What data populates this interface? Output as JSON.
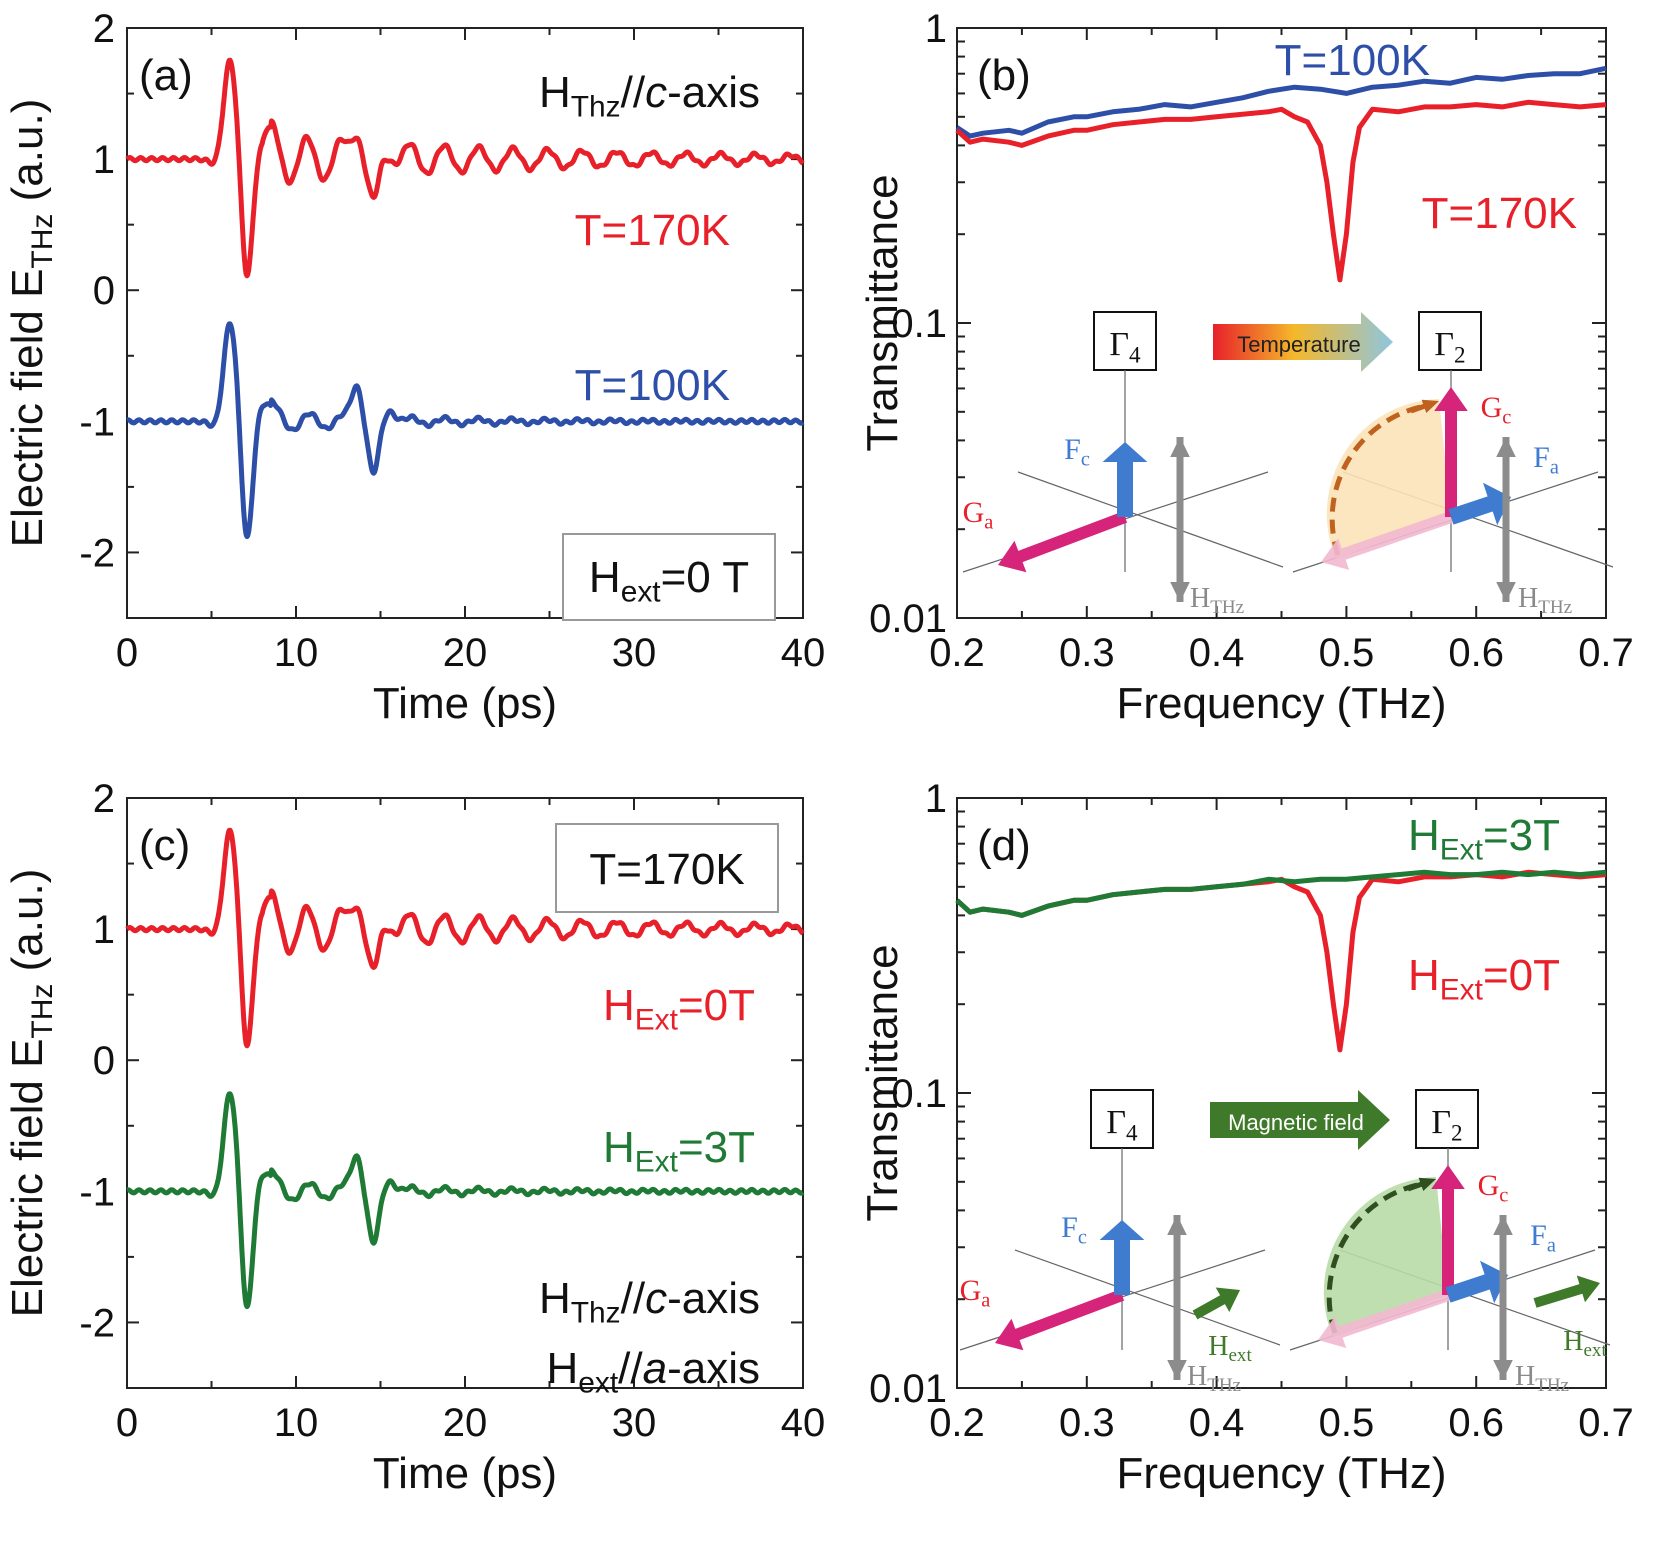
{
  "colors": {
    "red": "#e8202a",
    "blue": "#2e4fa8",
    "green": "#1f7a35",
    "axis": "#222222",
    "gray_label": "#8a8a8a",
    "magenta": "#d6247a",
    "arrow_blue": "#3f7cd0",
    "arrow_gray": "#8c8c8c",
    "fill_orange": "#fbe3b8",
    "dash_orange": "#c0621f",
    "fill_green": "#b9dba8",
    "dash_green": "#2f4f20",
    "magnet_green": "#3f7a2a"
  },
  "chart_data": [
    {
      "panel": "(a)",
      "type": "line",
      "xlabel": "Time (ps)",
      "ylabel": "Electric field E",
      "ylabel_sub": "THz",
      "ylabel_unit": " (a.u.)",
      "xlim": [
        0,
        40
      ],
      "ylim": [
        -2.5,
        2
      ],
      "xticks": [
        "0",
        "10",
        "20",
        "30",
        "40"
      ],
      "yticks": [
        "2",
        "1",
        "0",
        "-1",
        "-2"
      ],
      "top_annotation": {
        "main": "H",
        "sub": "Thz",
        "rest": "//",
        "italic": "c",
        "after": "-axis"
      },
      "box_label": {
        "main": "H",
        "sub": "ext",
        "rest": "=0 T"
      },
      "series": [
        {
          "name": "T=170K",
          "offset": 1,
          "amp": 0.4,
          "color": "red"
        },
        {
          "name": "T=100K",
          "offset": -1,
          "amp": 0.4,
          "color": "blue"
        }
      ]
    },
    {
      "panel": "(b)",
      "type": "line",
      "xlabel": "Frequency (THz)",
      "ylabel": "Transmittance",
      "yscale": "log",
      "xlim": [
        0.2,
        0.7
      ],
      "ylim": [
        0.01,
        1
      ],
      "xticks": [
        "0.2",
        "0.3",
        "0.4",
        "0.5",
        "0.6",
        "0.7"
      ],
      "yticks": [
        "1",
        "0.1",
        "0.01"
      ],
      "series": [
        {
          "name": "T=100K",
          "color": "blue",
          "x": [
            0.2,
            0.21,
            0.22,
            0.24,
            0.25,
            0.27,
            0.29,
            0.3,
            0.32,
            0.34,
            0.36,
            0.38,
            0.4,
            0.42,
            0.44,
            0.46,
            0.48,
            0.5,
            0.52,
            0.54,
            0.56,
            0.58,
            0.6,
            0.62,
            0.64,
            0.66,
            0.68,
            0.7
          ],
          "y": [
            0.46,
            0.43,
            0.44,
            0.45,
            0.44,
            0.48,
            0.5,
            0.5,
            0.52,
            0.53,
            0.55,
            0.54,
            0.56,
            0.58,
            0.61,
            0.63,
            0.62,
            0.6,
            0.63,
            0.64,
            0.66,
            0.65,
            0.68,
            0.67,
            0.69,
            0.7,
            0.7,
            0.73
          ]
        },
        {
          "name": "T=170K",
          "color": "red",
          "x": [
            0.2,
            0.21,
            0.22,
            0.24,
            0.25,
            0.27,
            0.29,
            0.3,
            0.32,
            0.34,
            0.36,
            0.38,
            0.4,
            0.42,
            0.44,
            0.45,
            0.46,
            0.47,
            0.48,
            0.485,
            0.49,
            0.495,
            0.5,
            0.505,
            0.51,
            0.52,
            0.54,
            0.56,
            0.58,
            0.6,
            0.62,
            0.64,
            0.66,
            0.68,
            0.7
          ],
          "y": [
            0.45,
            0.41,
            0.42,
            0.41,
            0.4,
            0.43,
            0.45,
            0.45,
            0.47,
            0.48,
            0.49,
            0.49,
            0.5,
            0.51,
            0.52,
            0.53,
            0.5,
            0.48,
            0.4,
            0.3,
            0.2,
            0.14,
            0.2,
            0.35,
            0.46,
            0.53,
            0.52,
            0.54,
            0.54,
            0.55,
            0.54,
            0.56,
            0.55,
            0.54,
            0.55
          ]
        }
      ],
      "labels": {
        "t100": "T=100K",
        "t170": "T=170K"
      },
      "inset": {
        "left_state": "Γ",
        "left_state_sub": "4",
        "right_state": "Γ",
        "right_state_sub": "2",
        "transition": "Temperature",
        "labels": {
          "Fc": "F",
          "Fc_sub": "c",
          "Ga": "G",
          "Ga_sub": "a",
          "Gc": "G",
          "Gc_sub": "c",
          "Fa": "F",
          "Fa_sub": "a",
          "H": "H",
          "H_sub": "THz"
        }
      }
    },
    {
      "panel": "(c)",
      "type": "line",
      "xlabel": "Time (ps)",
      "ylabel": "Electric field E",
      "ylabel_sub": "THz",
      "ylabel_unit": " (a.u.)",
      "xlim": [
        0,
        40
      ],
      "ylim": [
        -2.5,
        2
      ],
      "xticks": [
        "0",
        "10",
        "20",
        "30",
        "40"
      ],
      "yticks": [
        "2",
        "1",
        "0",
        "-1",
        "-2"
      ],
      "box_label": {
        "main": "T=170K"
      },
      "bottom_annotation": [
        {
          "main": "H",
          "sub": "Thz",
          "rest": "//",
          "italic": "c",
          "after": "-axis"
        },
        {
          "main": "H",
          "sub": "ext",
          "rest": "//",
          "italic": "a",
          "after": "-axis"
        }
      ],
      "series": [
        {
          "name": "H_Ext=0T",
          "label_main": "H",
          "label_sub": "Ext",
          "label_rest": "=0T",
          "offset": 1,
          "amp": 0.4,
          "color": "red"
        },
        {
          "name": "H_Ext=3T",
          "label_main": "H",
          "label_sub": "Ext",
          "label_rest": "=3T",
          "offset": -1,
          "amp": 0.4,
          "color": "green"
        }
      ]
    },
    {
      "panel": "(d)",
      "type": "line",
      "xlabel": "Frequency (THz)",
      "ylabel": "Transmittance",
      "yscale": "log",
      "xlim": [
        0.2,
        0.7
      ],
      "ylim": [
        0.01,
        1
      ],
      "xticks": [
        "0.2",
        "0.3",
        "0.4",
        "0.5",
        "0.6",
        "0.7"
      ],
      "yticks": [
        "1",
        "0.1",
        "0.01"
      ],
      "series": [
        {
          "name": "H_Ext=0T",
          "color": "red",
          "x": [
            0.2,
            0.21,
            0.22,
            0.24,
            0.25,
            0.27,
            0.29,
            0.3,
            0.32,
            0.34,
            0.36,
            0.38,
            0.4,
            0.42,
            0.44,
            0.45,
            0.46,
            0.47,
            0.48,
            0.485,
            0.49,
            0.495,
            0.5,
            0.505,
            0.51,
            0.52,
            0.54,
            0.56,
            0.58,
            0.6,
            0.62,
            0.64,
            0.66,
            0.68,
            0.7
          ],
          "y": [
            0.45,
            0.41,
            0.42,
            0.41,
            0.4,
            0.43,
            0.45,
            0.45,
            0.47,
            0.48,
            0.49,
            0.49,
            0.5,
            0.51,
            0.52,
            0.53,
            0.5,
            0.48,
            0.4,
            0.3,
            0.2,
            0.14,
            0.2,
            0.35,
            0.46,
            0.53,
            0.52,
            0.54,
            0.54,
            0.55,
            0.54,
            0.56,
            0.55,
            0.54,
            0.55
          ]
        },
        {
          "name": "H_Ext=3T",
          "color": "green",
          "x": [
            0.2,
            0.21,
            0.22,
            0.24,
            0.25,
            0.27,
            0.29,
            0.3,
            0.32,
            0.34,
            0.36,
            0.38,
            0.4,
            0.42,
            0.44,
            0.46,
            0.48,
            0.5,
            0.52,
            0.54,
            0.56,
            0.58,
            0.6,
            0.62,
            0.64,
            0.66,
            0.68,
            0.7
          ],
          "y": [
            0.45,
            0.41,
            0.42,
            0.41,
            0.4,
            0.43,
            0.45,
            0.45,
            0.47,
            0.48,
            0.49,
            0.49,
            0.5,
            0.51,
            0.53,
            0.52,
            0.53,
            0.53,
            0.54,
            0.55,
            0.56,
            0.55,
            0.55,
            0.56,
            0.55,
            0.56,
            0.55,
            0.56
          ]
        }
      ],
      "labels": {
        "h3_main": "H",
        "h3_sub": "Ext",
        "h3_rest": "=3T",
        "h0_main": "H",
        "h0_sub": "Ext",
        "h0_rest": "=0T"
      },
      "inset": {
        "left_state": "Γ",
        "left_state_sub": "4",
        "right_state": "Γ",
        "right_state_sub": "2",
        "transition": "Magnetic field",
        "labels": {
          "Fc": "F",
          "Fc_sub": "c",
          "Ga": "G",
          "Ga_sub": "a",
          "Gc": "G",
          "Gc_sub": "c",
          "Fa": "F",
          "Fa_sub": "a",
          "H": "H",
          "H_sub": "THz",
          "Hext": "H",
          "Hext_sub": "ext"
        }
      }
    }
  ]
}
